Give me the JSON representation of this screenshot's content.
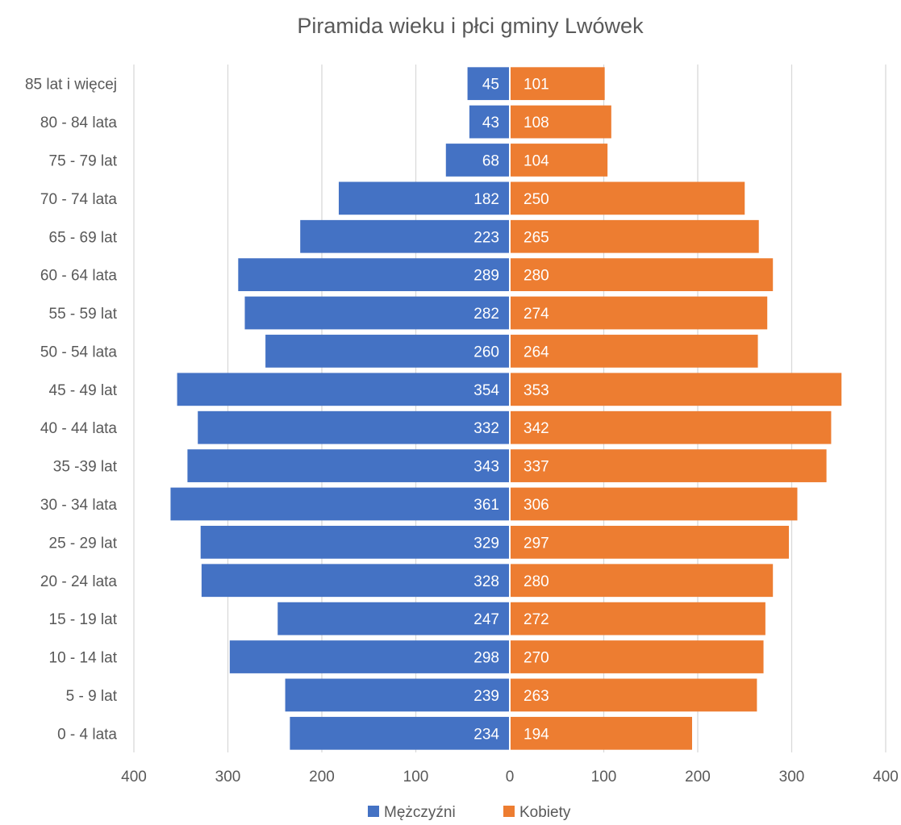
{
  "chart_data": {
    "type": "bar",
    "orientation": "horizontal",
    "layout": "population-pyramid",
    "title": "Piramida wieku i płci gminy Lwówek",
    "categories": [
      "85 lat i więcej",
      "80 - 84 lata",
      "75 - 79 lat",
      "70 - 74 lata",
      "65 - 69 lat",
      "60 - 64 lata",
      "55 - 59 lat",
      "50 - 54 lata",
      "45 - 49 lat",
      "40 - 44 lata",
      "35 -39 lat",
      "30 - 34 lata",
      "25 - 29 lat",
      "20 - 24 lata",
      "15 - 19 lat",
      "10 - 14 lat",
      "5 - 9 lat",
      "0 - 4 lata"
    ],
    "series": [
      {
        "name": "Mężczyźni",
        "color": "#4472c4",
        "side": "left",
        "values": [
          45,
          43,
          68,
          182,
          223,
          289,
          282,
          260,
          354,
          332,
          343,
          361,
          329,
          328,
          247,
          298,
          239,
          234
        ]
      },
      {
        "name": "Kobiety",
        "color": "#ed7d31",
        "side": "right",
        "values": [
          101,
          108,
          104,
          250,
          265,
          280,
          274,
          264,
          353,
          342,
          337,
          306,
          297,
          280,
          272,
          270,
          263,
          194
        ]
      }
    ],
    "xlim": [
      -400,
      400
    ],
    "xticks": [
      -400,
      -300,
      -200,
      -100,
      0,
      100,
      200,
      300,
      400
    ],
    "xtick_labels": [
      "400",
      "300",
      "200",
      "100",
      "0",
      "100",
      "200",
      "300",
      "400"
    ],
    "grid": "vertical",
    "legend": "bottom",
    "data_labels": true
  }
}
